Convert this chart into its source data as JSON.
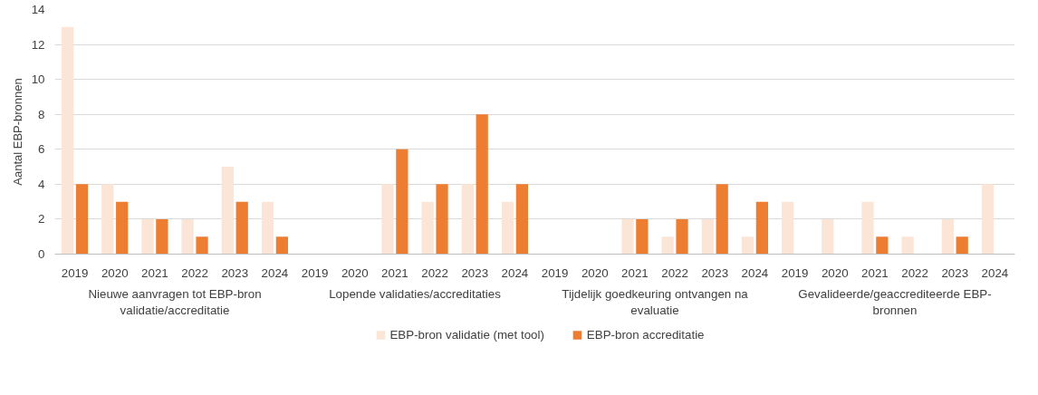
{
  "chart_data": {
    "type": "bar",
    "ylabel": "Aantal EBP-bronnen",
    "categories": [
      "2019",
      "2020",
      "2021",
      "2022",
      "2023",
      "2024",
      "2019",
      "2020",
      "2021",
      "2022",
      "2023",
      "2024",
      "2019",
      "2020",
      "2021",
      "2022",
      "2023",
      "2024",
      "2019",
      "2020",
      "2021",
      "2022",
      "2023",
      "2024"
    ],
    "annotations": [
      "Nieuwe aanvragen tot EBP-bron validatie/accreditatie",
      "Lopende validaties/accreditaties",
      "Tijdelijk goedkeuring ontvangen na evaluatie",
      "Gevalideerde/geaccrediteerde EBP-bronnen"
    ],
    "series": [
      {
        "name": "EBP-bron validatie (met tool)",
        "color": "#fbe5d6",
        "values": [
          13,
          4,
          2,
          2,
          5,
          3,
          0,
          0,
          4,
          3,
          4,
          3,
          0,
          0,
          2,
          1,
          2,
          1,
          3,
          2,
          3,
          1,
          2,
          4
        ]
      },
      {
        "name": "EBP-bron accreditatie",
        "color": "#ed7d31",
        "values": [
          4,
          3,
          2,
          1,
          3,
          1,
          0,
          0,
          6,
          4,
          8,
          4,
          0,
          0,
          2,
          2,
          4,
          3,
          0,
          0,
          1,
          0,
          1,
          0
        ]
      }
    ],
    "ylim": [
      0,
      14
    ],
    "yticks": [
      0,
      2,
      4,
      6,
      8,
      10,
      12,
      14
    ],
    "grid": "y",
    "legend": "bottom"
  }
}
